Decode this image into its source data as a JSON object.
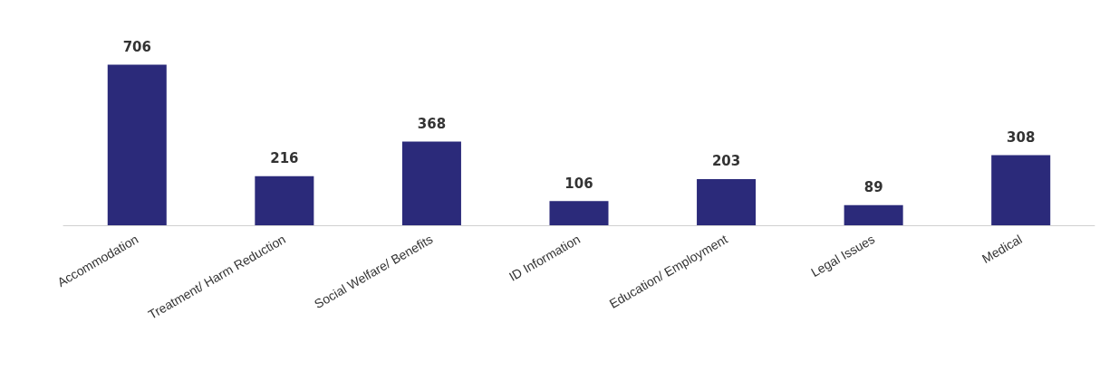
{
  "chart_data": {
    "type": "bar",
    "categories": [
      "Accommodation",
      "Treatment/ Harm Reduction",
      "Social Welfare/ Benefits",
      "ID Information",
      "Education/ Employment",
      "Legal Issues",
      "Medical"
    ],
    "values": [
      706,
      216,
      368,
      106,
      203,
      89,
      308
    ],
    "color": "#2b2a7a",
    "data_labels": true
  }
}
